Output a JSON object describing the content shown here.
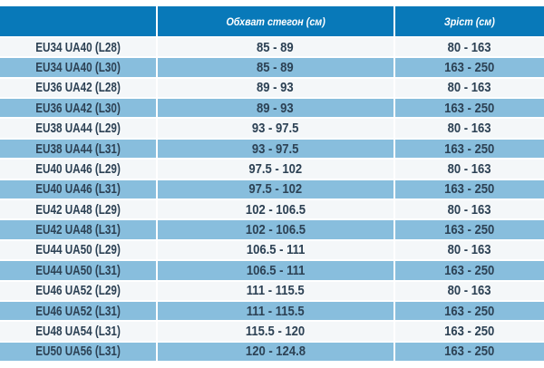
{
  "page": {
    "background": "#ffffff",
    "description": "Clothing size chart table (Ukrainian): hip circumference and height ranges per size"
  },
  "colors": {
    "header_bg": "#0879b9",
    "row_light_bg": "#f4f7f9",
    "row_blue_bg": "#88bedd",
    "row_text": "#2c4154",
    "header_text": "#ffffff",
    "gap": "#ffffff"
  },
  "table": {
    "header": {
      "size": "",
      "hips": "Обхват стегон (см)",
      "height": "Зріст (см)"
    },
    "rows": [
      {
        "size": "EU34 UA40 (L28)",
        "hips": "85 - 89",
        "height": "80 - 163"
      },
      {
        "size": "EU34 UA40 (L30)",
        "hips": "85 - 89",
        "height": "163 - 250"
      },
      {
        "size": "EU36 UA42 (L28)",
        "hips": "89 - 93",
        "height": "80 - 163"
      },
      {
        "size": "EU36 UA42 (L30)",
        "hips": "89 - 93",
        "height": "163 - 250"
      },
      {
        "size": "EU38 UA44 (L29)",
        "hips": "93 - 97.5",
        "height": "80 - 163"
      },
      {
        "size": "EU38 UA44 (L31)",
        "hips": "93 - 97.5",
        "height": "163 - 250"
      },
      {
        "size": "EU40 UA46 (L29)",
        "hips": "97.5 - 102",
        "height": "80 - 163"
      },
      {
        "size": "EU40 UA46 (L31)",
        "hips": "97.5 - 102",
        "height": "163 - 250"
      },
      {
        "size": "EU42 UA48 (L29)",
        "hips": "102 - 106.5",
        "height": "80 - 163"
      },
      {
        "size": "EU42 UA48 (L31)",
        "hips": "102 - 106.5",
        "height": "163 - 250"
      },
      {
        "size": "EU44 UA50 (L29)",
        "hips": "106.5 - 111",
        "height": "80 - 163"
      },
      {
        "size": "EU44 UA50 (L31)",
        "hips": "106.5 - 111",
        "height": "163 - 250"
      },
      {
        "size": "EU46 UA52 (L29)",
        "hips": "111 - 115.5",
        "height": "80 - 163"
      },
      {
        "size": "EU46 UA52 (L31)",
        "hips": "111 - 115.5",
        "height": "163 - 250"
      },
      {
        "size": "EU48 UA54 (L31)",
        "hips": "115.5 - 120",
        "height": "163 - 250"
      },
      {
        "size": "EU50 UA56 (L31)",
        "hips": "120 - 124.8",
        "height": "163 - 250"
      }
    ]
  },
  "chart_data": {
    "type": "table",
    "title": "",
    "columns": [
      "",
      "Обхват стегон (см)",
      "Зріст (см)"
    ],
    "rows": [
      [
        "EU34 UA40 (L28)",
        "85 - 89",
        "80 - 163"
      ],
      [
        "EU34 UA40 (L30)",
        "85 - 89",
        "163 - 250"
      ],
      [
        "EU36 UA42 (L28)",
        "89 - 93",
        "80 - 163"
      ],
      [
        "EU36 UA42 (L30)",
        "89 - 93",
        "163 - 250"
      ],
      [
        "EU38 UA44 (L29)",
        "93 - 97.5",
        "80 - 163"
      ],
      [
        "EU38 UA44 (L31)",
        "93 - 97.5",
        "163 - 250"
      ],
      [
        "EU40 UA46 (L29)",
        "97.5 - 102",
        "80 - 163"
      ],
      [
        "EU40 UA46 (L31)",
        "97.5 - 102",
        "163 - 250"
      ],
      [
        "EU42 UA48 (L29)",
        "102 - 106.5",
        "80 - 163"
      ],
      [
        "EU42 UA48 (L31)",
        "102 - 106.5",
        "163 - 250"
      ],
      [
        "EU44 UA50 (L29)",
        "106.5 - 111",
        "80 - 163"
      ],
      [
        "EU44 UA50 (L31)",
        "106.5 - 111",
        "163 - 250"
      ],
      [
        "EU46 UA52 (L29)",
        "111 - 115.5",
        "80 - 163"
      ],
      [
        "EU46 UA52 (L31)",
        "111 - 115.5",
        "163 - 250"
      ],
      [
        "EU48 UA54 (L31)",
        "115.5 - 120",
        "163 - 250"
      ],
      [
        "EU50 UA56 (L31)",
        "120 - 124.8",
        "163 - 250"
      ]
    ]
  }
}
